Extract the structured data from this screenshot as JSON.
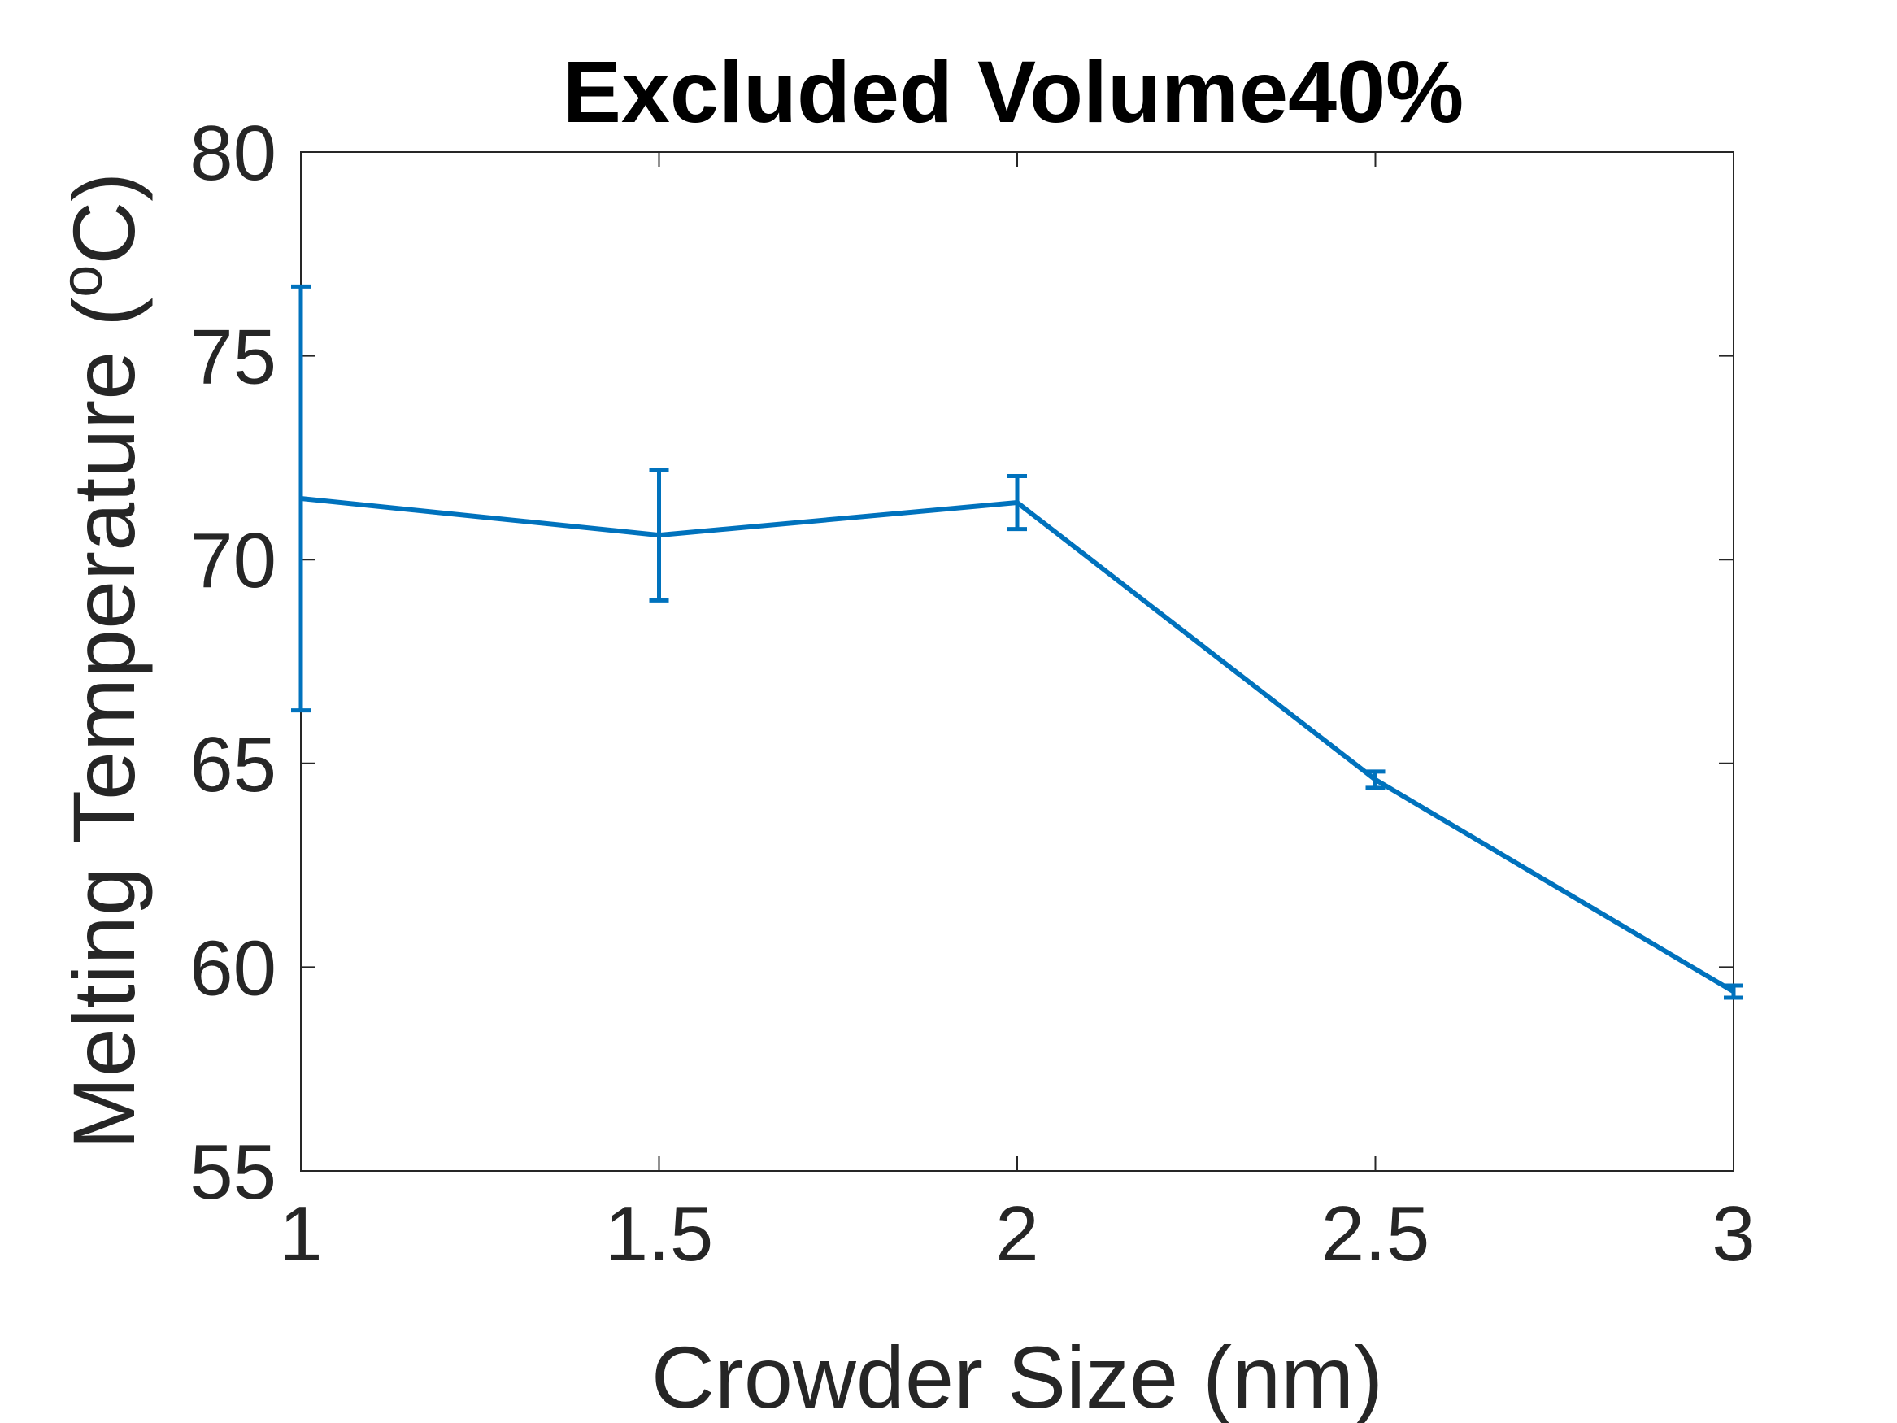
{
  "chart_data": {
    "type": "line",
    "title": "Excluded Volume40%",
    "xlabel": "Crowder Size (nm)",
    "ylabel": "Melting Temperature (",
    "ylabel_superscript": "o",
    "ylabel_suffix": "C)",
    "xlim": [
      1,
      3
    ],
    "ylim": [
      55,
      80
    ],
    "xticks": [
      "1",
      "1.5",
      "2",
      "2.5",
      "3"
    ],
    "yticks": [
      "55",
      "60",
      "65",
      "70",
      "75",
      "80"
    ],
    "grid": false,
    "series": [
      {
        "color": "#0072BD",
        "x": [
          1,
          1.5,
          2,
          2.5,
          3
        ],
        "y": [
          71.5,
          70.6,
          71.4,
          64.6,
          59.4
        ],
        "error": [
          5.2,
          1.6,
          0.65,
          0.2,
          0.15
        ]
      }
    ]
  }
}
